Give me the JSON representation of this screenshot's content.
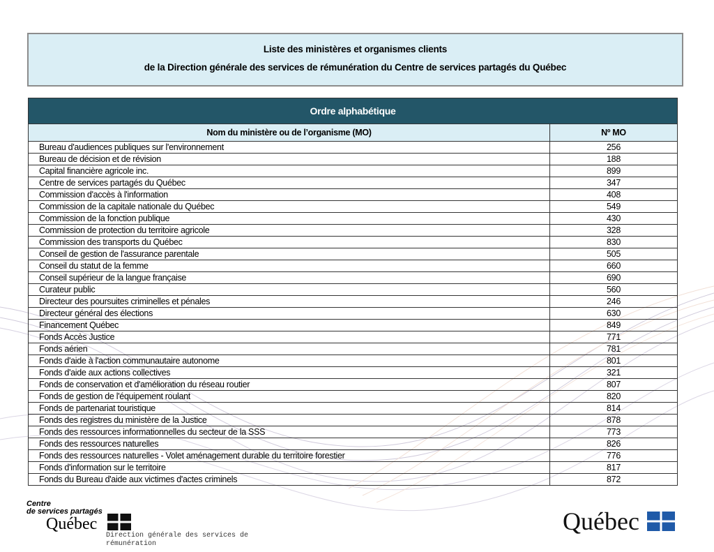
{
  "header": {
    "title_line1": "Liste des ministères et organismes clients",
    "title_line2": "de la Direction générale des services de rémunération du Centre de services partagés du Québec"
  },
  "table": {
    "section_title": "Ordre alphabétique",
    "headers": [
      "Nom du ministère ou de l’organisme (MO)",
      "Nº MO"
    ],
    "rows": [
      [
        "Bureau d'audiences publiques sur l'environnement",
        256
      ],
      [
        "Bureau de décision et de révision",
        188
      ],
      [
        "Capital financière agricole inc.",
        899
      ],
      [
        "Centre de services partagés du Québec",
        347
      ],
      [
        "Commission d'accès à l'information",
        408
      ],
      [
        "Commission de la capitale nationale du Québec",
        549
      ],
      [
        "Commission de la fonction publique",
        430
      ],
      [
        "Commission de protection du territoire agricole",
        328
      ],
      [
        "Commission des transports du Québec",
        830
      ],
      [
        "Conseil de gestion de l'assurance parentale",
        505
      ],
      [
        "Conseil du statut de la femme",
        660
      ],
      [
        "Conseil supérieur de la langue française",
        690
      ],
      [
        "Curateur public",
        560
      ],
      [
        "Directeur des poursuites criminelles et pénales",
        246
      ],
      [
        "Directeur général des élections",
        630
      ],
      [
        "Financement Québec",
        849
      ],
      [
        "Fonds Accès Justice",
        771
      ],
      [
        "Fonds aérien",
        781
      ],
      [
        "Fonds d'aide à l'action communautaire autonome",
        801
      ],
      [
        "Fonds d'aide aux actions collectives",
        321
      ],
      [
        "Fonds de conservation et d'amélioration du réseau routier",
        807
      ],
      [
        "Fonds de gestion de l'équipement roulant",
        820
      ],
      [
        "Fonds de partenariat touristique",
        814
      ],
      [
        "Fonds des registres du ministère de la Justice",
        878
      ],
      [
        "Fonds des ressources informationnelles du secteur de la SSS",
        773
      ],
      [
        "Fonds des ressources naturelles",
        826
      ],
      [
        "Fonds des ressources naturelles - Volet aménagement durable du territoire forestier",
        776
      ],
      [
        "Fonds d'information sur le territoire",
        817
      ],
      [
        "Fonds du Bureau d'aide aux victimes d'actes criminels",
        872
      ]
    ]
  },
  "footer": {
    "logo_line1": "Centre",
    "logo_line2": "de services partagés",
    "logo_name": "Québec",
    "unit": "Direction générale des services de rémunération",
    "right_logo": "Québec"
  }
}
